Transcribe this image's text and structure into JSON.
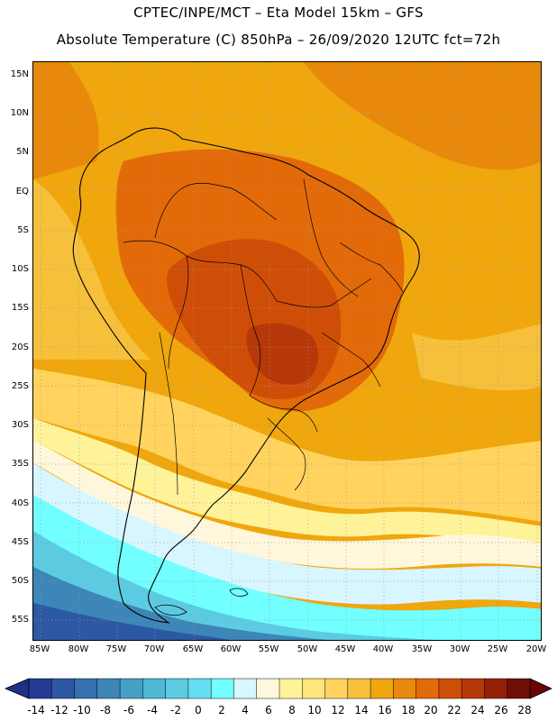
{
  "header": {
    "line1": "CPTEC/INPE/MCT –  Eta Model 15km – GFS",
    "line2": "Absolute Temperature (C) 850hPa – 26/09/2020 12UTC fct=72h"
  },
  "axes": {
    "lat_labels": [
      "15N",
      "10N",
      "5N",
      "EQ",
      "5S",
      "10S",
      "15S",
      "20S",
      "25S",
      "30S",
      "35S",
      "40S",
      "45S",
      "50S",
      "55S"
    ],
    "lon_labels": [
      "85W",
      "80W",
      "75W",
      "70W",
      "65W",
      "60W",
      "55W",
      "50W",
      "45W",
      "40W",
      "35W",
      "30W",
      "25W",
      "20W"
    ]
  },
  "colorbar": {
    "ticks": [
      "-14",
      "-12",
      "-10",
      "-8",
      "-6",
      "-4",
      "-2",
      "0",
      "2",
      "4",
      "6",
      "8",
      "10",
      "12",
      "14",
      "16",
      "18",
      "20",
      "22",
      "24",
      "26",
      "28"
    ],
    "low_color": "#1e2f86",
    "high_color": "#6a0505",
    "colors": [
      "#243a94",
      "#2c58a4",
      "#3471ae",
      "#3c86b8",
      "#45a0c6",
      "#4fb8d5",
      "#5ccbe2",
      "#64def0",
      "#72ffff",
      "#d8f6ff",
      "#fff7dc",
      "#fff39a",
      "#ffe67c",
      "#ffd35e",
      "#f6c03a",
      "#f0a60d",
      "#e9890b",
      "#e36a08",
      "#cf4e07",
      "#b63708",
      "#962006",
      "#6f0e06"
    ]
  },
  "map": {
    "type": "filled-contour",
    "variable": "Absolute Temperature (C)",
    "level": "850hPa",
    "lat_range": [
      "57.5S",
      "17N"
    ],
    "lon_range": [
      "86W",
      "19W"
    ],
    "background_color": "#f0a60d",
    "features": [
      "South America coastline",
      "country borders",
      "Brazilian state borders",
      "dotted lat/lon grid"
    ]
  }
}
